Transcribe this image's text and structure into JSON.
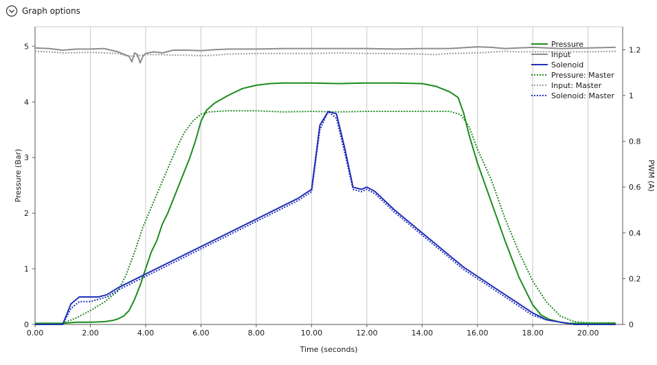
{
  "header": {
    "title": "Graph options",
    "icon": "chevron-circle-down-icon"
  },
  "chart_data": {
    "type": "line",
    "xlabel": "Time (seconds)",
    "ylabel": "Pressure (Bar)",
    "y2label": "PWM (A)",
    "xlim": [
      0,
      21.25
    ],
    "ylim": [
      0,
      5.35
    ],
    "y2lim": [
      0,
      1.3
    ],
    "xticks": [
      "0.00",
      "2.00",
      "4.00",
      "6.00",
      "8.00",
      "10.00",
      "12.00",
      "14.00",
      "16.00",
      "18.00",
      "20.00"
    ],
    "xtick_values": [
      0,
      2,
      4,
      6,
      8,
      10,
      12,
      14,
      16,
      18,
      20
    ],
    "yticks": [
      "0",
      "1",
      "2",
      "3",
      "4",
      "5"
    ],
    "ytick_values": [
      0,
      1,
      2,
      3,
      4,
      5
    ],
    "y2ticks": [
      "0",
      "0.2",
      "0.4",
      "0.6",
      "0.8",
      "1",
      "1.2"
    ],
    "y2tick_values": [
      0,
      0.2,
      0.4,
      0.6,
      0.8,
      1.0,
      1.2
    ],
    "grid": "vertical",
    "legend_position": "top-right",
    "series": [
      {
        "name": "Pressure",
        "axis": "left",
        "color": "#1a8a1a",
        "style": "solid",
        "x": [
          0,
          1,
          1.5,
          2,
          2.5,
          2.8,
          3,
          3.2,
          3.4,
          3.6,
          3.8,
          4,
          4.2,
          4.4,
          4.6,
          4.8,
          5,
          5.2,
          5.4,
          5.6,
          5.8,
          6,
          6.2,
          6.5,
          7,
          7.5,
          8,
          8.5,
          9,
          10,
          11,
          12,
          13,
          14,
          14.5,
          15,
          15.3,
          15.5,
          15.7,
          16,
          16.5,
          17,
          17.5,
          18,
          18.3,
          18.6,
          19,
          19.3,
          19.6,
          20,
          21
        ],
        "y": [
          0.02,
          0.02,
          0.04,
          0.04,
          0.05,
          0.07,
          0.1,
          0.15,
          0.25,
          0.45,
          0.7,
          1.0,
          1.3,
          1.5,
          1.8,
          2.0,
          2.25,
          2.5,
          2.75,
          3.0,
          3.3,
          3.65,
          3.85,
          3.98,
          4.12,
          4.24,
          4.3,
          4.33,
          4.34,
          4.34,
          4.33,
          4.34,
          4.34,
          4.33,
          4.28,
          4.18,
          4.08,
          3.8,
          3.4,
          2.9,
          2.2,
          1.5,
          0.85,
          0.35,
          0.17,
          0.09,
          0.04,
          0.02,
          0.02,
          0.02,
          0.02
        ]
      },
      {
        "name": "Input",
        "axis": "left",
        "color": "#8c8c8c",
        "style": "solid",
        "x": [
          0,
          0.5,
          1,
          1.5,
          2,
          2.5,
          3,
          3.2,
          3.4,
          3.5,
          3.6,
          3.7,
          3.8,
          3.9,
          4,
          4.3,
          4.6,
          5,
          5.5,
          6,
          6.5,
          7,
          8,
          9,
          10,
          11,
          12,
          13,
          14,
          15,
          16,
          16.5,
          17,
          18,
          19,
          20,
          21
        ],
        "y": [
          4.97,
          4.96,
          4.93,
          4.95,
          4.95,
          4.96,
          4.9,
          4.86,
          4.82,
          4.72,
          4.88,
          4.85,
          4.7,
          4.82,
          4.87,
          4.9,
          4.88,
          4.93,
          4.93,
          4.92,
          4.94,
          4.95,
          4.95,
          4.96,
          4.96,
          4.96,
          4.96,
          4.95,
          4.96,
          4.96,
          4.99,
          4.98,
          4.96,
          4.98,
          4.96,
          4.97,
          4.98
        ]
      },
      {
        "name": "Solenoid",
        "axis": "right",
        "color": "#1f2fb8",
        "style": "solid",
        "x": [
          0,
          1,
          1.3,
          1.6,
          2,
          2.3,
          2.6,
          3,
          3.5,
          4,
          4.5,
          5,
          5.5,
          6,
          6.5,
          7,
          7.5,
          8,
          8.5,
          9,
          9.5,
          10,
          10.3,
          10.6,
          10.9,
          11.2,
          11.5,
          11.8,
          12,
          12.3,
          13,
          13.5,
          14,
          14.5,
          15,
          15.5,
          16,
          16.5,
          17,
          17.5,
          18,
          18.5,
          19,
          19.5,
          20,
          21
        ],
        "y": [
          0.0,
          0.0,
          0.09,
          0.12,
          0.12,
          0.12,
          0.13,
          0.16,
          0.19,
          0.22,
          0.25,
          0.28,
          0.31,
          0.34,
          0.37,
          0.4,
          0.43,
          0.46,
          0.49,
          0.52,
          0.55,
          0.59,
          0.87,
          0.93,
          0.92,
          0.77,
          0.6,
          0.59,
          0.6,
          0.58,
          0.5,
          0.45,
          0.4,
          0.35,
          0.3,
          0.25,
          0.21,
          0.17,
          0.13,
          0.09,
          0.05,
          0.02,
          0.01,
          0.0,
          0.0,
          0.0
        ]
      },
      {
        "name": "Pressure: Master",
        "axis": "left",
        "color": "#1a8a1a",
        "style": "dotted",
        "x": [
          0,
          1,
          1.5,
          2,
          2.5,
          3,
          3.3,
          3.6,
          3.9,
          4.2,
          4.5,
          4.8,
          5.1,
          5.4,
          5.7,
          6,
          6.3,
          6.6,
          7,
          8,
          9,
          10,
          11,
          12,
          13,
          14,
          15,
          15.4,
          15.7,
          16,
          16.5,
          17,
          17.5,
          18,
          18.5,
          19,
          19.5,
          20,
          21
        ],
        "y": [
          0.02,
          0.02,
          0.12,
          0.25,
          0.4,
          0.6,
          0.9,
          1.3,
          1.75,
          2.1,
          2.45,
          2.8,
          3.15,
          3.45,
          3.65,
          3.78,
          3.82,
          3.83,
          3.84,
          3.84,
          3.82,
          3.83,
          3.82,
          3.83,
          3.83,
          3.83,
          3.83,
          3.77,
          3.55,
          3.15,
          2.6,
          1.9,
          1.3,
          0.78,
          0.4,
          0.15,
          0.05,
          0.03,
          0.03
        ]
      },
      {
        "name": "Input: Master",
        "axis": "left",
        "color": "#9a9a9a",
        "style": "dotted",
        "x": [
          0,
          0.5,
          1,
          2,
          3,
          3.3,
          3.6,
          4,
          4.5,
          5,
          5.5,
          6,
          6.5,
          7,
          8,
          9,
          10,
          11,
          12,
          13,
          14,
          14.5,
          15,
          16,
          17,
          17.5,
          18,
          19,
          20,
          21
        ],
        "y": [
          4.91,
          4.9,
          4.88,
          4.89,
          4.87,
          4.83,
          4.82,
          4.85,
          4.85,
          4.84,
          4.84,
          4.83,
          4.84,
          4.86,
          4.87,
          4.87,
          4.87,
          4.88,
          4.87,
          4.87,
          4.86,
          4.85,
          4.87,
          4.88,
          4.91,
          4.9,
          4.9,
          4.9,
          4.9,
          4.91
        ]
      },
      {
        "name": "Solenoid: Master",
        "axis": "right",
        "color": "#1f2fb8",
        "style": "dotted",
        "x": [
          0,
          1,
          1.3,
          1.6,
          2,
          2.3,
          2.6,
          3,
          3.5,
          4,
          4.5,
          5,
          5.5,
          6,
          6.5,
          7,
          7.5,
          8,
          8.5,
          9,
          9.5,
          10,
          10.3,
          10.6,
          10.9,
          11.2,
          11.5,
          11.8,
          12,
          12.3,
          13,
          13.5,
          14,
          14.5,
          15,
          15.5,
          16,
          16.5,
          17,
          17.5,
          18,
          18.5,
          19,
          19.5,
          20,
          21
        ],
        "y": [
          0.0,
          0.0,
          0.07,
          0.1,
          0.1,
          0.11,
          0.12,
          0.15,
          0.18,
          0.21,
          0.24,
          0.27,
          0.3,
          0.33,
          0.36,
          0.39,
          0.42,
          0.45,
          0.48,
          0.51,
          0.54,
          0.58,
          0.85,
          0.93,
          0.9,
          0.75,
          0.59,
          0.58,
          0.59,
          0.57,
          0.49,
          0.44,
          0.39,
          0.34,
          0.29,
          0.24,
          0.2,
          0.16,
          0.12,
          0.08,
          0.04,
          0.02,
          0.01,
          0.0,
          0.0,
          0.0
        ]
      }
    ]
  }
}
